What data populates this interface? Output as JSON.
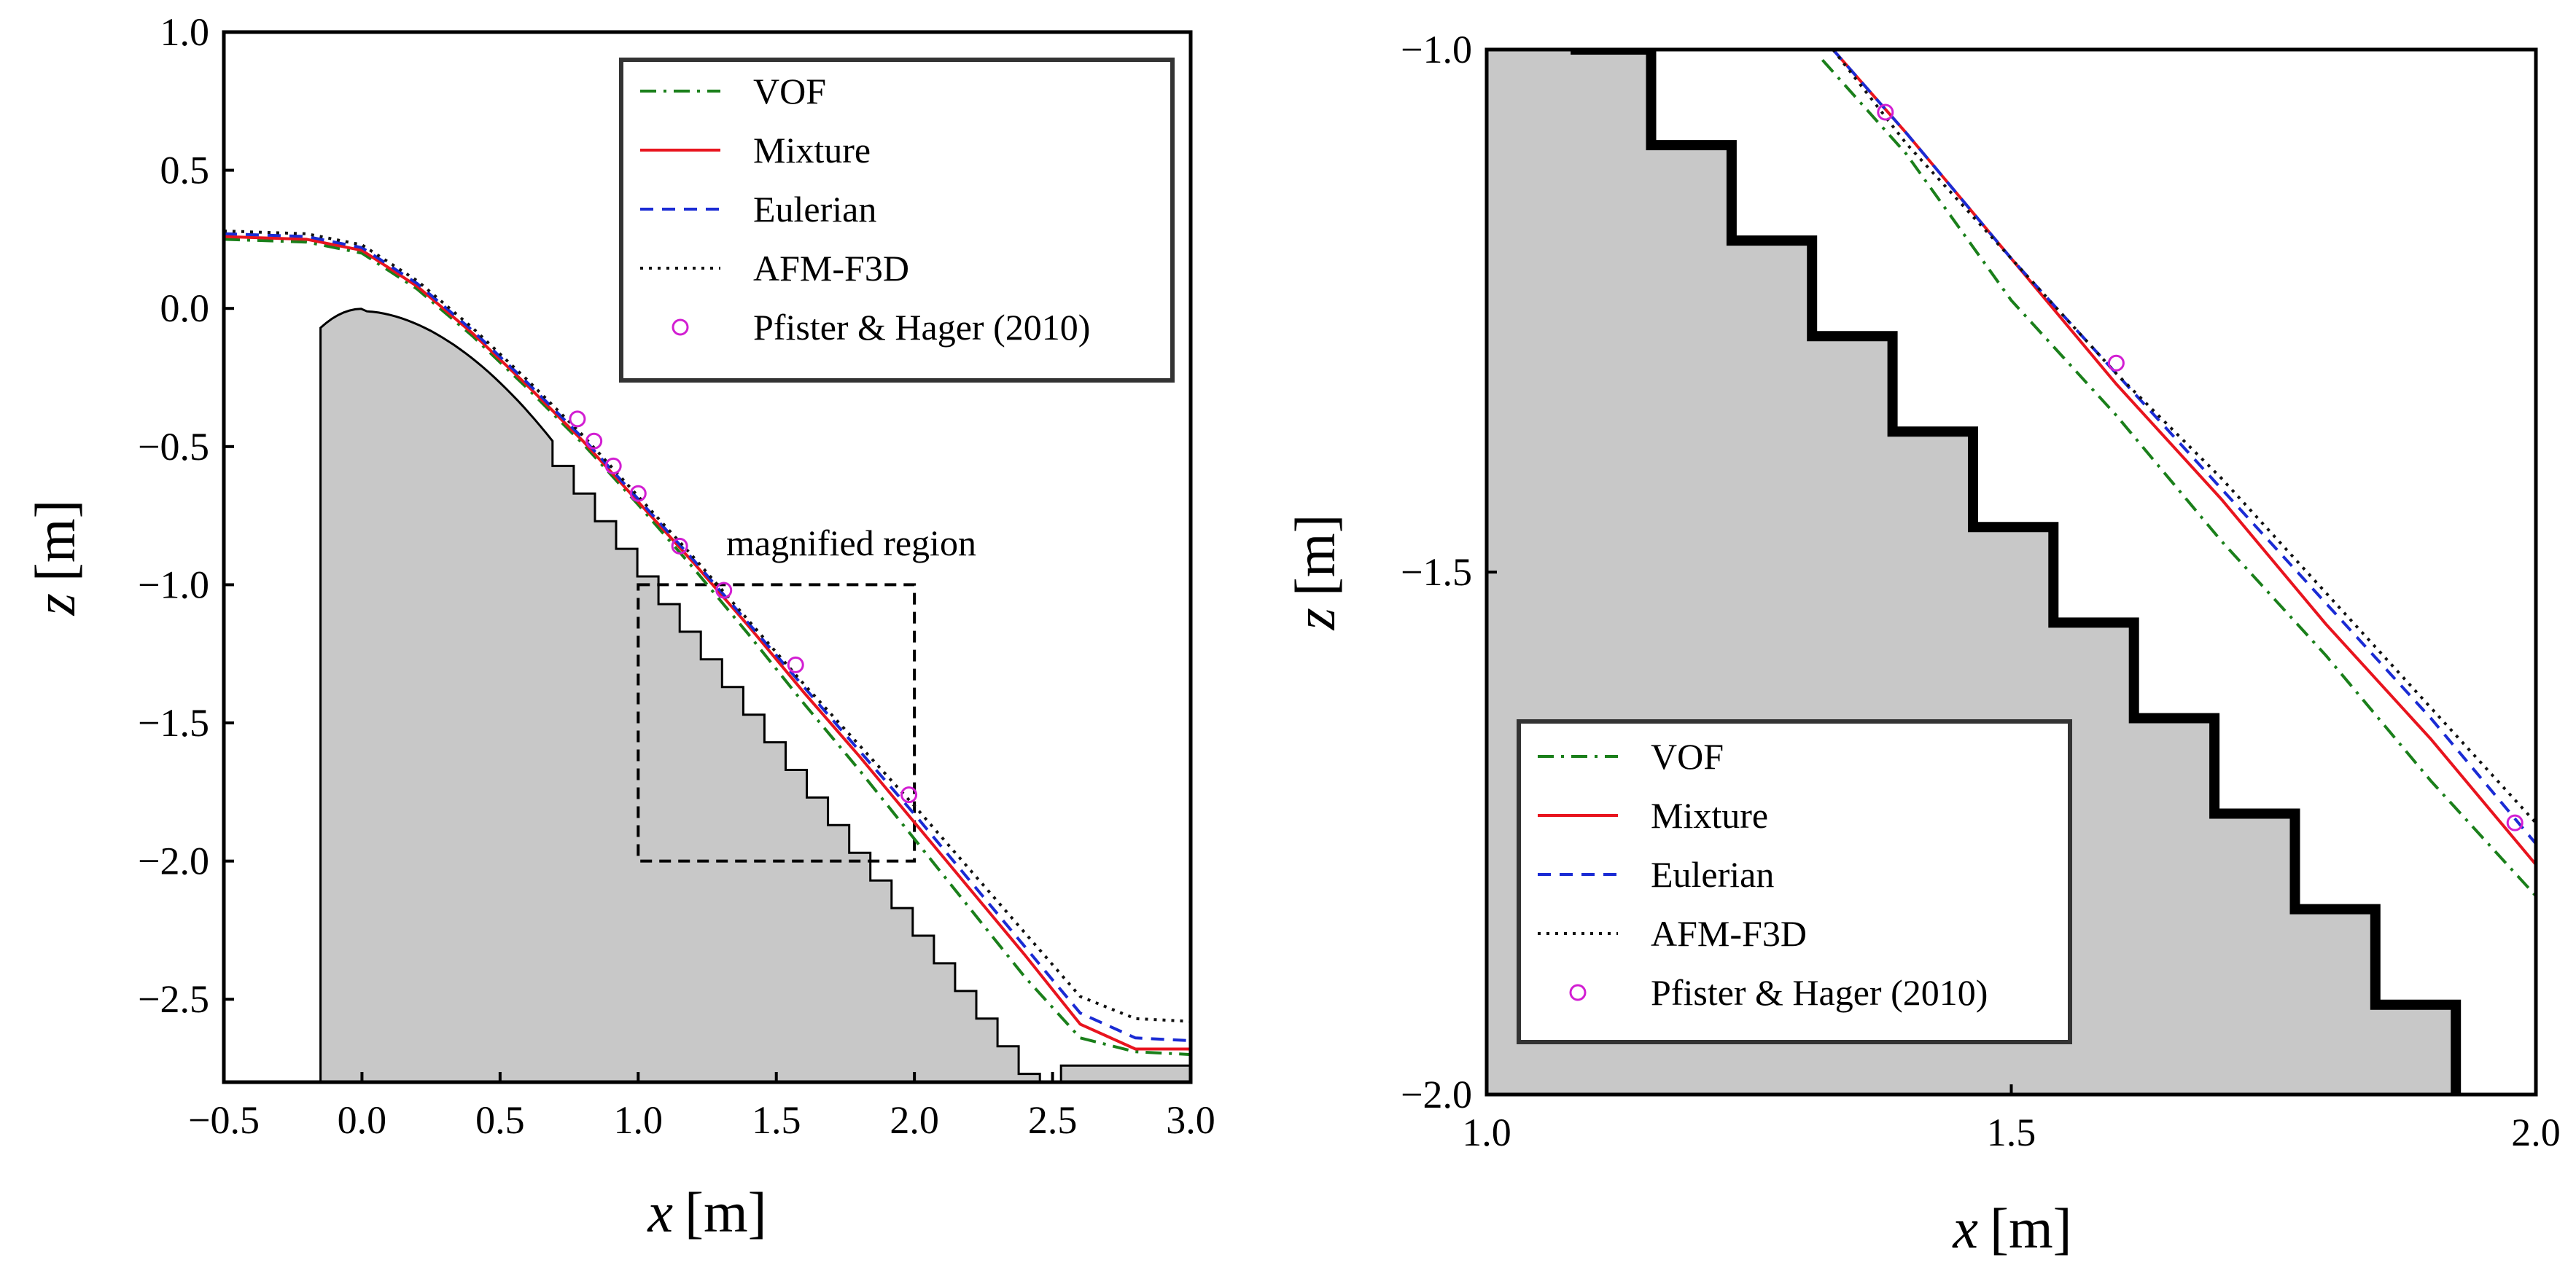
{
  "chart_data": [
    {
      "type": "line",
      "title": "",
      "xlabel_var": "x",
      "xlabel_unit": "[m]",
      "ylabel_var": "z",
      "ylabel_unit": "[m]",
      "xlim": [
        -0.5,
        3.0
      ],
      "ylim": [
        -2.8,
        1.0
      ],
      "xticks": [
        -0.5,
        0.0,
        0.5,
        1.0,
        1.5,
        2.0,
        2.5,
        3.0
      ],
      "xtick_labels": [
        "−0.5",
        "0.0",
        "0.5",
        "1.0",
        "1.5",
        "2.0",
        "2.5",
        "3.0"
      ],
      "yticks": [
        1.0,
        0.5,
        0.0,
        -0.5,
        -1.0,
        -1.5,
        -2.0,
        -2.5
      ],
      "ytick_labels": [
        "1.0",
        "0.5",
        "0.0",
        "−0.5",
        "−1.0",
        "−1.5",
        "−2.0",
        "−2.5"
      ],
      "grid": false,
      "legend_position": "top-right",
      "annotation": {
        "text": "magnified region",
        "x": 1.33,
        "y": -0.86
      },
      "magnified_box": {
        "x0": 1.0,
        "x1": 2.0,
        "y0": -2.0,
        "y1": -1.0
      },
      "spillway": {
        "crest_start": [
          -0.15,
          -0.07
        ],
        "crest_end": [
          0.69,
          -0.47
        ],
        "step_dx": 0.0767,
        "step_dz": 0.1,
        "steps": 24,
        "toe_x": 2.54,
        "floor_z": -2.74,
        "end_x": 3.0
      },
      "series": [
        {
          "name": "VOF",
          "color": "#1a7f1a",
          "dash": "22 10 4 10",
          "x": [
            -0.5,
            -0.2,
            0.0,
            0.2,
            0.4,
            0.6,
            0.8,
            1.0,
            1.2,
            1.4,
            1.6,
            1.8,
            2.0,
            2.2,
            2.4,
            2.6,
            2.8,
            3.0
          ],
          "y": [
            0.25,
            0.24,
            0.2,
            0.07,
            -0.1,
            -0.29,
            -0.49,
            -0.71,
            -0.94,
            -1.18,
            -1.43,
            -1.67,
            -1.92,
            -2.17,
            -2.42,
            -2.64,
            -2.69,
            -2.7
          ]
        },
        {
          "name": "Mixture",
          "color": "#e8141e",
          "dash": "",
          "x": [
            -0.5,
            -0.2,
            0.0,
            0.2,
            0.4,
            0.6,
            0.8,
            1.0,
            1.2,
            1.4,
            1.6,
            1.8,
            2.0,
            2.2,
            2.4,
            2.6,
            2.8,
            3.0
          ],
          "y": [
            0.26,
            0.25,
            0.21,
            0.08,
            -0.09,
            -0.28,
            -0.48,
            -0.7,
            -0.92,
            -1.15,
            -1.39,
            -1.62,
            -1.86,
            -2.1,
            -2.34,
            -2.59,
            -2.68,
            -2.68
          ]
        },
        {
          "name": "Eulerian",
          "color": "#1a2bd4",
          "dash": "18 12",
          "x": [
            -0.5,
            -0.2,
            0.0,
            0.2,
            0.4,
            0.6,
            0.8,
            1.0,
            1.2,
            1.4,
            1.6,
            1.8,
            2.0,
            2.2,
            2.4,
            2.6,
            2.8,
            3.0
          ],
          "y": [
            0.27,
            0.26,
            0.22,
            0.09,
            -0.08,
            -0.27,
            -0.47,
            -0.69,
            -0.91,
            -1.14,
            -1.37,
            -1.6,
            -1.83,
            -2.07,
            -2.31,
            -2.55,
            -2.64,
            -2.65
          ]
        },
        {
          "name": "AFM-F3D",
          "color": "#111111",
          "dash": "4 8",
          "x": [
            -0.5,
            -0.2,
            0.0,
            0.2,
            0.4,
            0.6,
            0.8,
            1.0,
            1.2,
            1.4,
            1.6,
            1.8,
            2.0,
            2.2,
            2.4,
            2.6,
            2.8,
            3.0
          ],
          "y": [
            0.28,
            0.27,
            0.23,
            0.1,
            -0.07,
            -0.26,
            -0.46,
            -0.68,
            -0.9,
            -1.13,
            -1.36,
            -1.58,
            -1.8,
            -2.03,
            -2.26,
            -2.49,
            -2.57,
            -2.58
          ]
        },
        {
          "name": "Pfister & Hager (2010)",
          "color": "#d21ed2",
          "marker": "circle",
          "x": [
            0.78,
            0.84,
            0.91,
            1.0,
            1.15,
            1.31,
            1.57,
            1.98
          ],
          "y": [
            -0.4,
            -0.48,
            -0.57,
            -0.67,
            -0.86,
            -1.02,
            -1.29,
            -1.76
          ]
        }
      ]
    },
    {
      "type": "line",
      "title": "",
      "xlabel_var": "x",
      "xlabel_unit": "[m]",
      "ylabel_var": "z",
      "ylabel_unit": "[m]",
      "xlim": [
        1.0,
        2.0
      ],
      "ylim": [
        -2.0,
        -1.0
      ],
      "xticks": [
        1.0,
        1.5,
        2.0
      ],
      "xtick_labels": [
        "1.0",
        "1.5",
        "2.0"
      ],
      "yticks": [
        -1.0,
        -1.5,
        -2.0
      ],
      "ytick_labels": [
        "−1.0",
        "−1.5",
        "−2.0"
      ],
      "grid": false,
      "legend_position": "bottom-left",
      "steps": {
        "start_x": 1.08,
        "start_z": -1.0,
        "step_dx": 0.0767,
        "step_dz": 0.0914,
        "count": 11
      },
      "series": [
        {
          "name": "VOF",
          "color": "#1a7f1a",
          "dash": "22 10 4 10",
          "x": [
            1.32,
            1.4,
            1.5,
            1.6,
            1.7,
            1.8,
            1.9,
            2.0
          ],
          "y": [
            -1.01,
            -1.1,
            -1.24,
            -1.35,
            -1.47,
            -1.58,
            -1.7,
            -1.81
          ]
        },
        {
          "name": "Mixture",
          "color": "#e8141e",
          "dash": "",
          "x": [
            1.33,
            1.4,
            1.5,
            1.6,
            1.7,
            1.8,
            1.9,
            2.0
          ],
          "y": [
            -1.0,
            -1.08,
            -1.2,
            -1.32,
            -1.43,
            -1.55,
            -1.66,
            -1.78
          ]
        },
        {
          "name": "Eulerian",
          "color": "#1a2bd4",
          "dash": "18 12",
          "x": [
            1.33,
            1.4,
            1.5,
            1.6,
            1.7,
            1.8,
            1.9,
            2.0
          ],
          "y": [
            -1.0,
            -1.08,
            -1.2,
            -1.31,
            -1.42,
            -1.53,
            -1.64,
            -1.76
          ]
        },
        {
          "name": "AFM-F3D",
          "color": "#111111",
          "dash": "4 8",
          "x": [
            1.33,
            1.4,
            1.5,
            1.6,
            1.7,
            1.8,
            1.9,
            2.0
          ],
          "y": [
            -1.0,
            -1.09,
            -1.2,
            -1.31,
            -1.41,
            -1.52,
            -1.63,
            -1.74
          ]
        },
        {
          "name": "Pfister & Hager (2010)",
          "color": "#d21ed2",
          "marker": "circle",
          "x": [
            1.38,
            1.6,
            1.98
          ],
          "y": [
            -1.06,
            -1.3,
            -1.74
          ]
        }
      ]
    }
  ]
}
